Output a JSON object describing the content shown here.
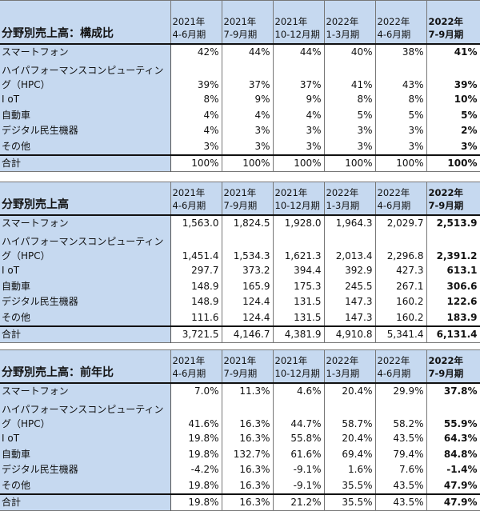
{
  "columns": [
    {
      "year": "2021年",
      "period": "4-6月期"
    },
    {
      "year": "2021年",
      "period": "7-9月期"
    },
    {
      "year": "2021年",
      "period": "10-12月期"
    },
    {
      "year": "2022年",
      "period": "1-3月期"
    },
    {
      "year": "2022年",
      "period": "4-6月期"
    },
    {
      "year": "2022年",
      "period": "7-9月期"
    }
  ],
  "tables": [
    {
      "title": "分野別売上高：構成比",
      "rows": [
        {
          "label": "スマートフォン",
          "values": [
            "42%",
            "44%",
            "44%",
            "40%",
            "38%",
            "41%"
          ]
        },
        {
          "label": "ハイパフォーマンスコンピューティング（HPC）",
          "values": [
            "39%",
            "37%",
            "37%",
            "41%",
            "43%",
            "39%"
          ]
        },
        {
          "label": "I oT",
          "values": [
            "8%",
            "9%",
            "9%",
            "8%",
            "8%",
            "10%"
          ]
        },
        {
          "label": "自動車",
          "values": [
            "4%",
            "4%",
            "4%",
            "5%",
            "5%",
            "5%"
          ]
        },
        {
          "label": "デジタル民生機器",
          "values": [
            "4%",
            "3%",
            "3%",
            "3%",
            "3%",
            "2%"
          ]
        },
        {
          "label": "その他",
          "values": [
            "3%",
            "3%",
            "3%",
            "3%",
            "3%",
            "3%"
          ]
        }
      ],
      "total": {
        "label": "合計",
        "values": [
          "100%",
          "100%",
          "100%",
          "100%",
          "100%",
          "100%"
        ]
      }
    },
    {
      "title": "分野別売上高",
      "rows": [
        {
          "label": "スマートフォン",
          "values": [
            "1,563.0",
            "1,824.5",
            "1,928.0",
            "1,964.3",
            "2,029.7",
            "2,513.9"
          ]
        },
        {
          "label": "ハイパフォーマンスコンピューティング（HPC）",
          "values": [
            "1,451.4",
            "1,534.3",
            "1,621.3",
            "2,013.4",
            "2,296.8",
            "2,391.2"
          ]
        },
        {
          "label": "I oT",
          "values": [
            "297.7",
            "373.2",
            "394.4",
            "392.9",
            "427.3",
            "613.1"
          ]
        },
        {
          "label": "自動車",
          "values": [
            "148.9",
            "165.9",
            "175.3",
            "245.5",
            "267.1",
            "306.6"
          ]
        },
        {
          "label": "デジタル民生機器",
          "values": [
            "148.9",
            "124.4",
            "131.5",
            "147.3",
            "160.2",
            "122.6"
          ]
        },
        {
          "label": "その他",
          "values": [
            "111.6",
            "124.4",
            "131.5",
            "147.3",
            "160.2",
            "183.9"
          ]
        }
      ],
      "total": {
        "label": "合計",
        "values": [
          "3,721.5",
          "4,146.7",
          "4,381.9",
          "4,910.8",
          "5,341.4",
          "6,131.4"
        ]
      }
    },
    {
      "title": "分野別売上高：前年比",
      "rows": [
        {
          "label": "スマートフォン",
          "values": [
            "7.0%",
            "11.3%",
            "4.6%",
            "20.4%",
            "29.9%",
            "37.8%"
          ]
        },
        {
          "label": "ハイパフォーマンスコンピューティング（HPC）",
          "values": [
            "41.6%",
            "16.3%",
            "44.7%",
            "58.7%",
            "58.2%",
            "55.9%"
          ]
        },
        {
          "label": "I oT",
          "values": [
            "19.8%",
            "16.3%",
            "55.8%",
            "20.4%",
            "43.5%",
            "64.3%"
          ]
        },
        {
          "label": "自動車",
          "values": [
            "19.8%",
            "132.7%",
            "61.6%",
            "69.4%",
            "79.4%",
            "84.8%"
          ]
        },
        {
          "label": "デジタル民生機器",
          "values": [
            "-4.2%",
            "16.3%",
            "-9.1%",
            "1.6%",
            "7.6%",
            "-1.4%"
          ]
        },
        {
          "label": "その他",
          "values": [
            "19.8%",
            "16.3%",
            "-9.1%",
            "35.5%",
            "43.5%",
            "47.9%"
          ]
        }
      ],
      "total": {
        "label": "合計",
        "values": [
          "19.8%",
          "16.3%",
          "21.2%",
          "35.5%",
          "43.5%",
          "47.9%"
        ]
      }
    }
  ]
}
